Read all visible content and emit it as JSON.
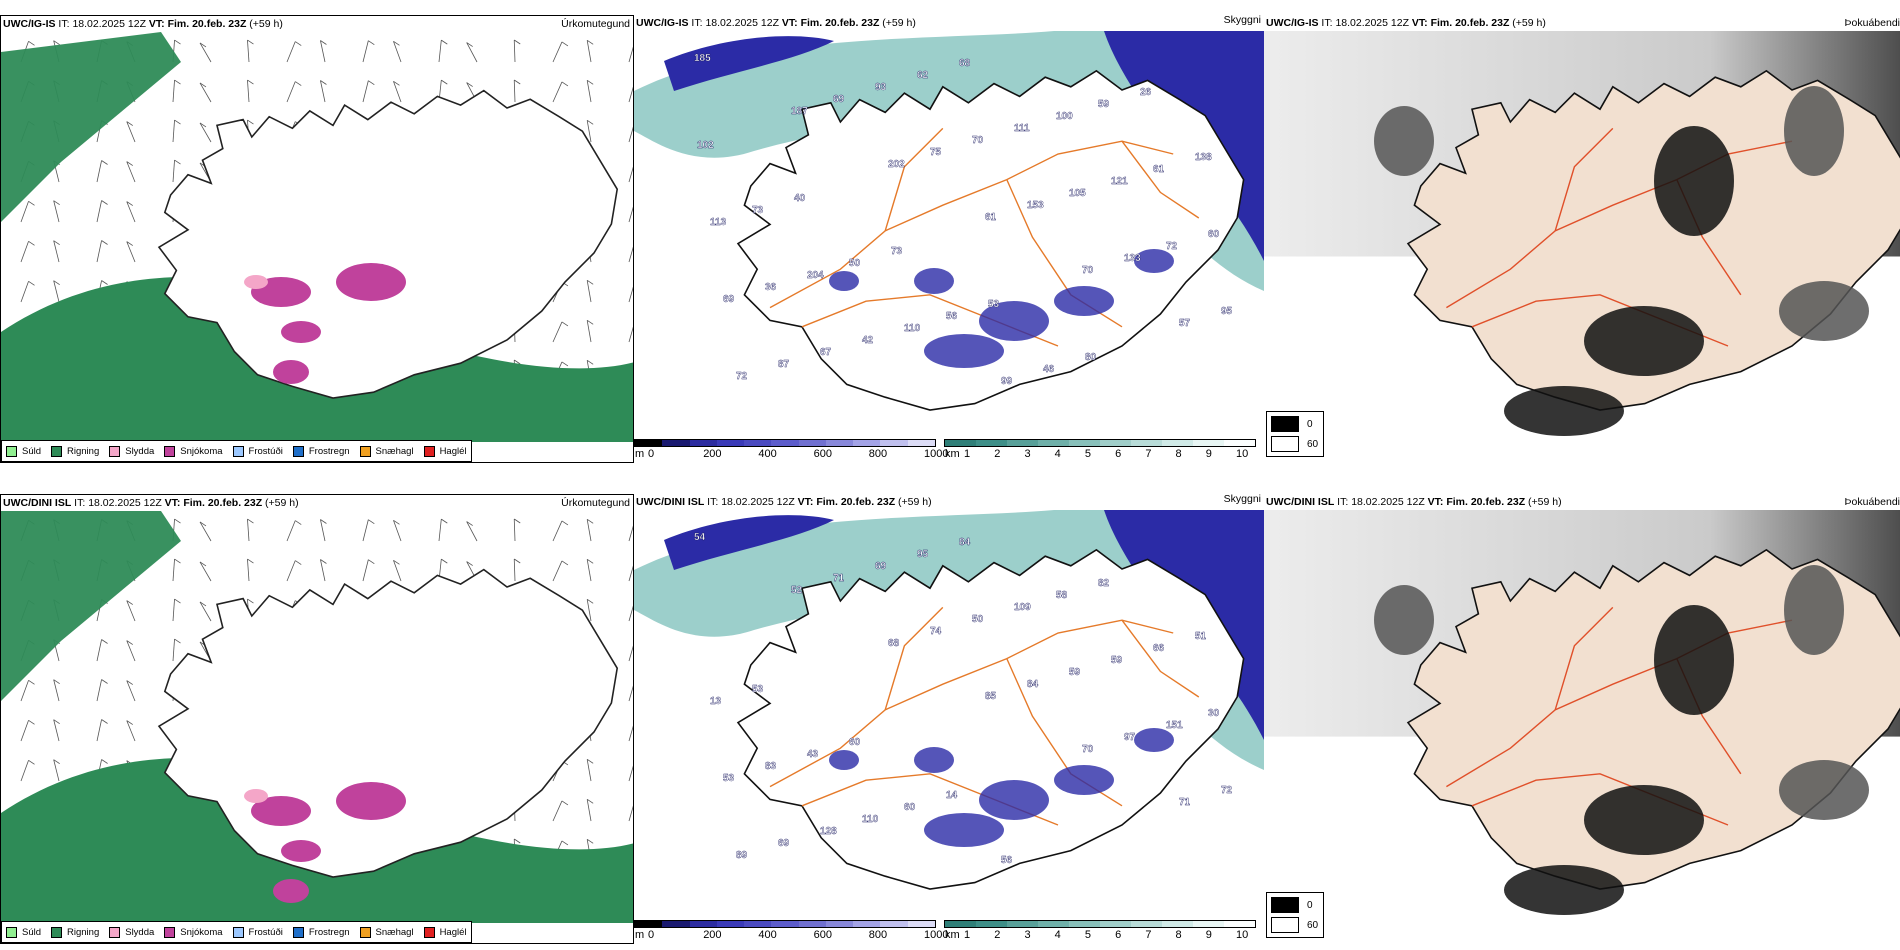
{
  "rows": [
    {
      "model": "UWC/IG-IS",
      "it_label": "IT:",
      "it_value": "18.02.2025 12Z",
      "vt_label": "VT:",
      "vt_value": "Fim. 20.feb. 23Z",
      "lead": "(+59 h)",
      "precip_title": "Úrkomutegund",
      "vis_title": "Skyggni",
      "fog_title": "Þokuábendi",
      "visibility_numbers": [
        "185",
        "187",
        "202",
        "61",
        "70",
        "57",
        "72",
        "69",
        "75",
        "153",
        "133",
        "95",
        "87",
        "93",
        "70",
        "105",
        "72",
        "69",
        "67",
        "62",
        "111",
        "121",
        "60",
        "36",
        "42",
        "68",
        "100",
        "61",
        "113",
        "204",
        "110",
        "99",
        "59",
        "138",
        "73",
        "50",
        "56",
        "46",
        "26",
        "102",
        "40",
        "73",
        "53",
        "80"
      ]
    },
    {
      "model": "UWC/DINI ISL",
      "it_label": "IT:",
      "it_value": "18.02.2025 12Z",
      "vt_label": "VT:",
      "vt_value": "Fim. 20.feb. 23Z",
      "lead": "(+59 h)",
      "precip_title": "Úrkomutegund",
      "vis_title": "Skyggni",
      "fog_title": "Þokuábendi",
      "visibility_numbers": [
        "54",
        "52",
        "68",
        "85",
        "70",
        "71",
        "89",
        "71",
        "74",
        "84",
        "97",
        "72",
        "69",
        "69",
        "50",
        "59",
        "151",
        "53",
        "128",
        "95",
        "109",
        "59",
        "30",
        "83",
        "110",
        "84",
        "58",
        "66",
        "13",
        "43",
        "60",
        "56",
        "82",
        "51",
        "53",
        "60",
        "14"
      ]
    }
  ],
  "precip_legend": [
    {
      "label": "Súld",
      "color": "#90ee90"
    },
    {
      "label": "Rigning",
      "color": "#2e8b57"
    },
    {
      "label": "Slydda",
      "color": "#f4a6c8"
    },
    {
      "label": "Snjókoma",
      "color": "#c0429c"
    },
    {
      "label": "Frostúði",
      "color": "#9cc8ff"
    },
    {
      "label": "Frostregn",
      "color": "#1f6fc9"
    },
    {
      "label": "Snæhagl",
      "color": "#f0a020"
    },
    {
      "label": "Haglél",
      "color": "#e02020"
    }
  ],
  "cloudbase_scale": {
    "unit": "m",
    "ticks": [
      "0",
      "200",
      "400",
      "600",
      "800",
      "1000"
    ]
  },
  "visibility_scale": {
    "unit": "km",
    "ticks": [
      "1",
      "2",
      "3",
      "4",
      "5",
      "6",
      "7",
      "8",
      "9",
      "10"
    ]
  },
  "fog_scale": {
    "ticks": [
      "0",
      "60"
    ]
  },
  "colors": {
    "rain": "#2e8b57",
    "snow": "#c0429c",
    "sleet": "#f4a6c8",
    "cloudbase_dark": "#2b2ba6",
    "visibility_teal": "#4aa8a0",
    "roads": "#e57a2a",
    "land_fog": "#f2e0d0"
  }
}
